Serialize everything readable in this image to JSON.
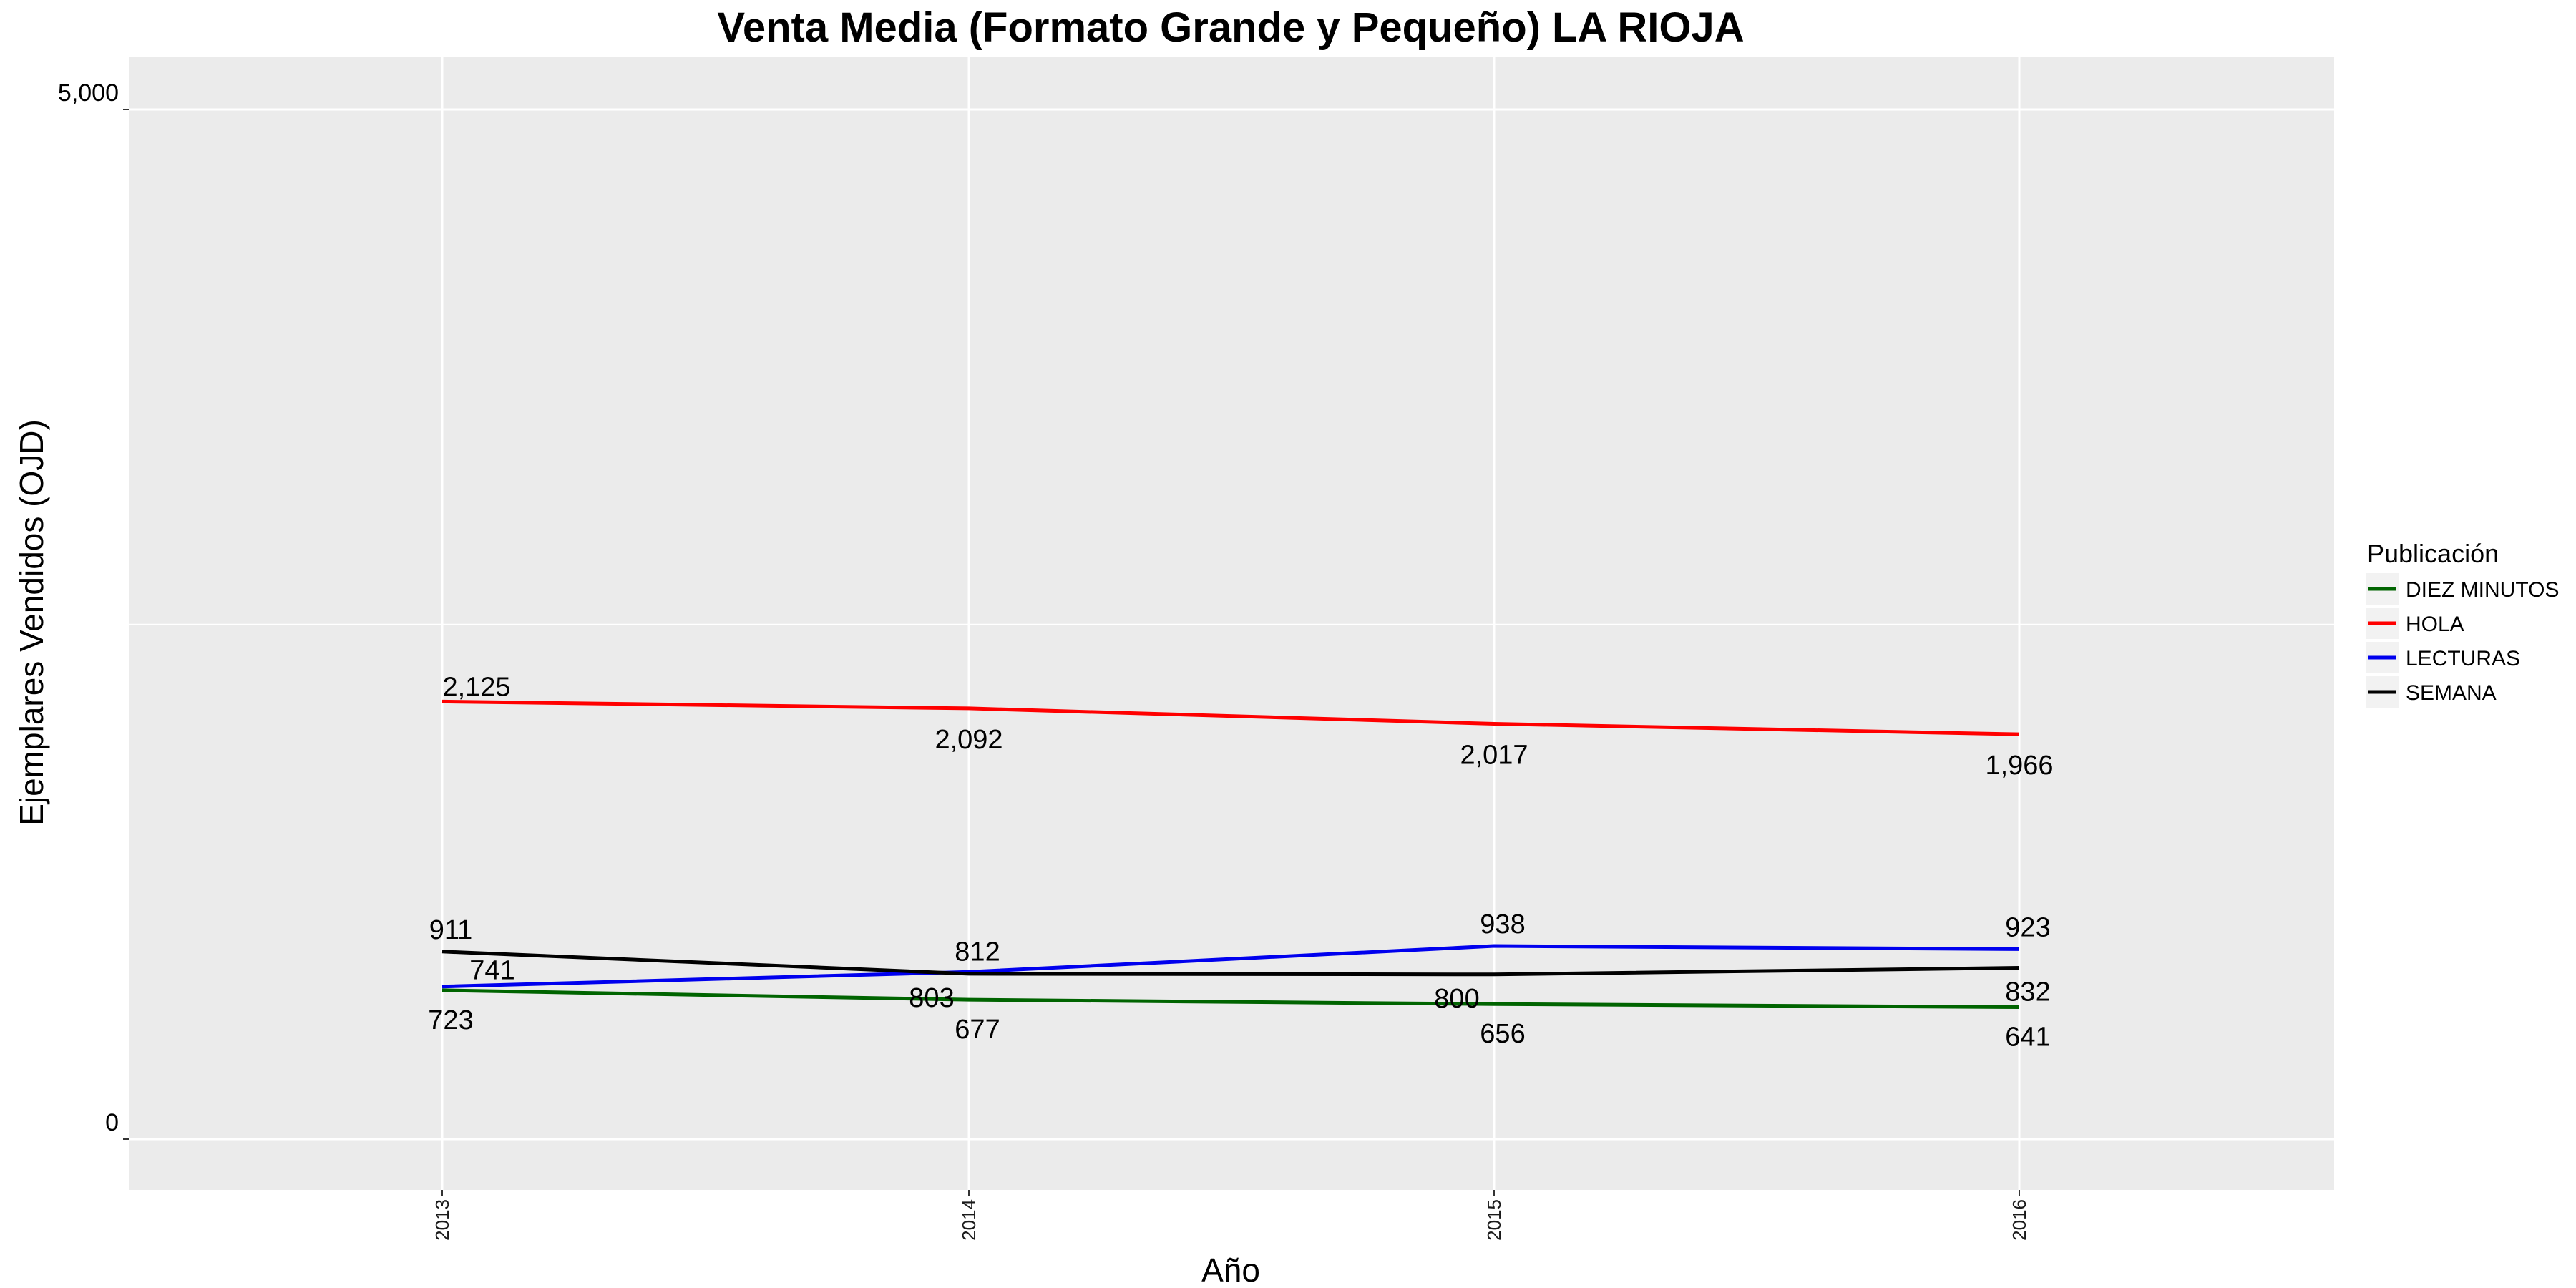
{
  "chart_data": {
    "type": "line",
    "title": "Venta Media (Formato Grande y Pequeño)  LA RIOJA",
    "xlabel": "Año",
    "ylabel": "Ejemplares Vendidos (OJD)",
    "x": [
      "2013",
      "2014",
      "2015",
      "2016"
    ],
    "ylim": [
      0,
      5000
    ],
    "y_ticks": [
      0,
      5000
    ],
    "y_tick_labels": [
      "0",
      "5,000"
    ],
    "grid": true,
    "legend_position": "right",
    "legend_title": "Publicación",
    "series": [
      {
        "name": "DIEZ MINUTOS",
        "color": "#006400",
        "values": [
          723,
          677,
          656,
          641
        ],
        "labels": [
          "723",
          "677",
          "656",
          "641"
        ]
      },
      {
        "name": "HOLA",
        "color": "#ff0000",
        "values": [
          2125,
          2092,
          2017,
          1966
        ],
        "labels": [
          "2,125",
          "2,092",
          "2,017",
          "1,966"
        ]
      },
      {
        "name": "LECTURAS",
        "color": "#0000ee",
        "values": [
          741,
          812,
          938,
          923
        ],
        "labels": [
          "741",
          "812",
          "938",
          "923"
        ]
      },
      {
        "name": "SEMANA",
        "color": "#000000",
        "values": [
          911,
          803,
          800,
          832
        ],
        "labels": [
          "911",
          "803",
          "800",
          "832"
        ]
      }
    ]
  }
}
